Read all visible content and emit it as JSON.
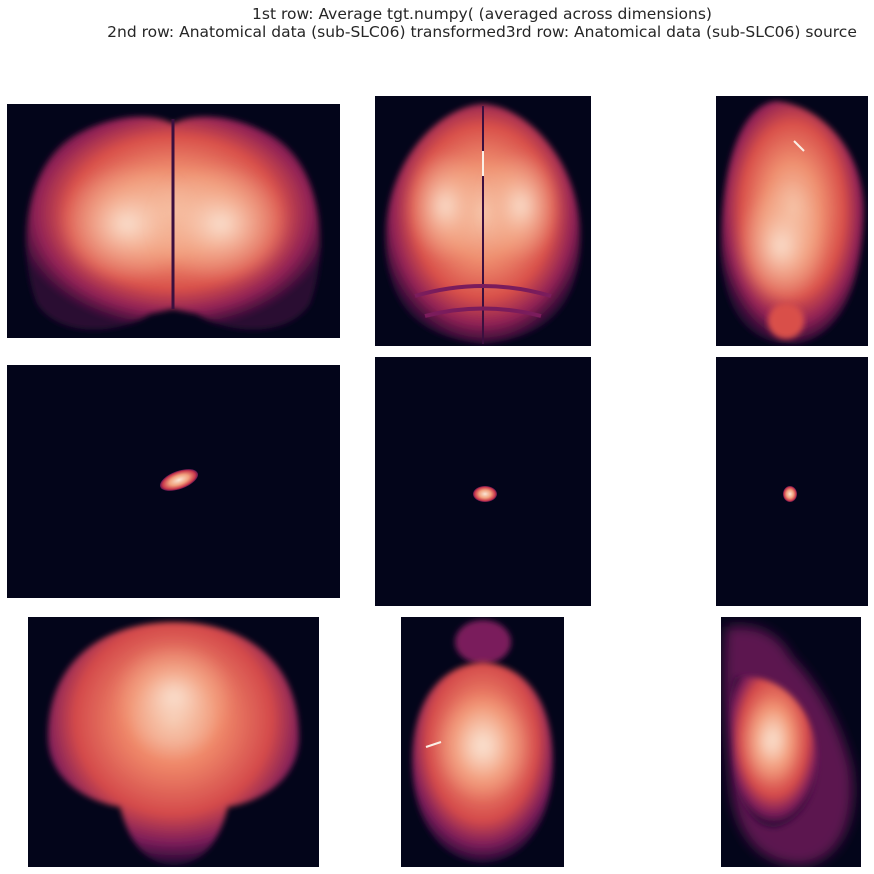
{
  "figure": {
    "title_line1": "1st row: Average tgt.numpy( (averaged across dimensions)",
    "title_line2": "2nd row: Anatomical data (sub-SLC06) transformed3rd row: Anatomical data (sub-SLC06) source"
  },
  "colors": {
    "background": "#03051a",
    "dark_purple": "#3b0f3f",
    "magenta": "#7a1c5c",
    "red": "#c03a4c",
    "orange": "#e8694a",
    "peach": "#f3a07e",
    "light": "#f8dcc8",
    "white": "#faefe6"
  },
  "colormap": "rocket",
  "panels": [
    {
      "row": 1,
      "view": "coronal",
      "content": "brain average"
    },
    {
      "row": 1,
      "view": "axial",
      "content": "brain average"
    },
    {
      "row": 1,
      "view": "sagittal",
      "content": "brain average"
    },
    {
      "row": 2,
      "view": "coronal",
      "content": "small transformed blob"
    },
    {
      "row": 2,
      "view": "axial",
      "content": "small transformed blob"
    },
    {
      "row": 2,
      "view": "sagittal",
      "content": "small transformed blob"
    },
    {
      "row": 3,
      "view": "coronal",
      "content": "source anatomy"
    },
    {
      "row": 3,
      "view": "axial",
      "content": "source anatomy"
    },
    {
      "row": 3,
      "view": "sagittal",
      "content": "source anatomy"
    }
  ]
}
